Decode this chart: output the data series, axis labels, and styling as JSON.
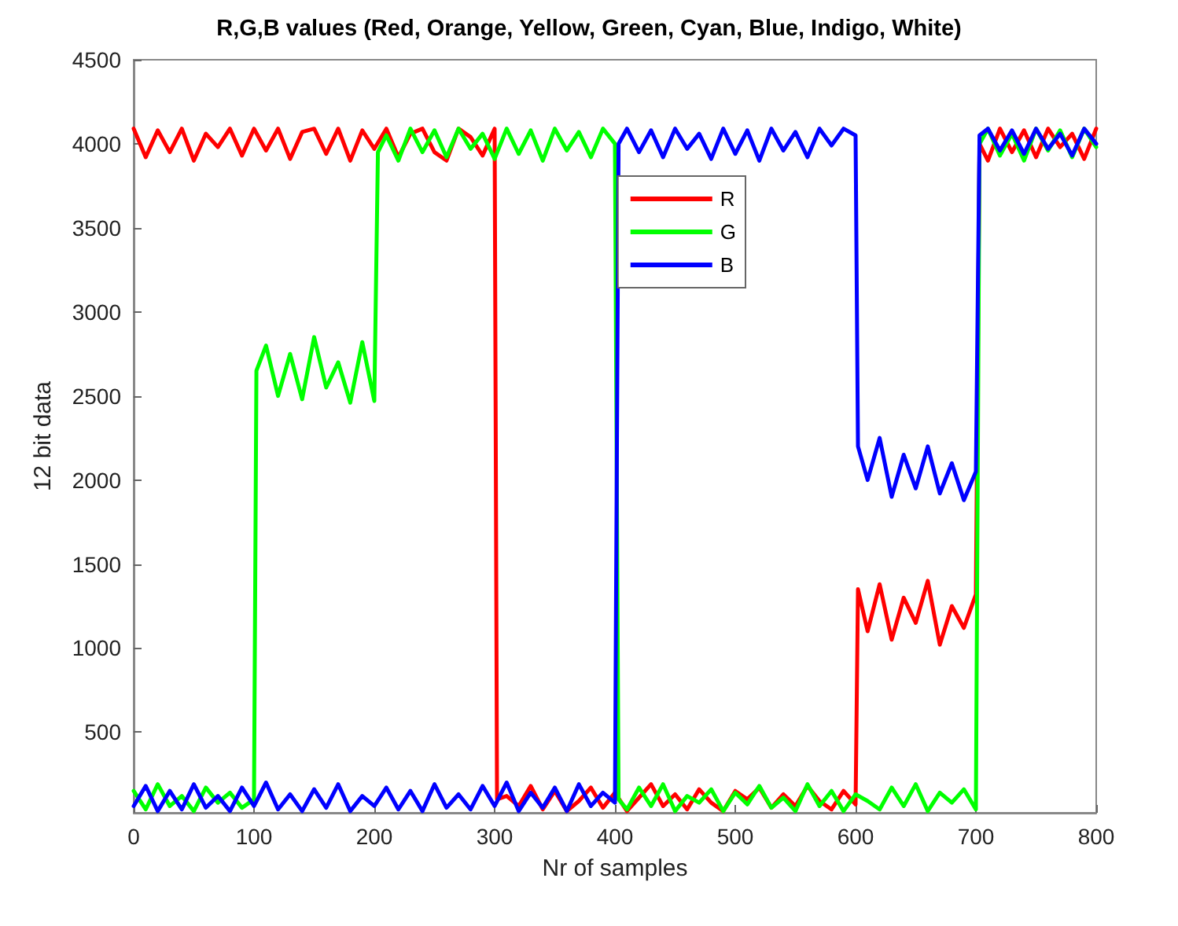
{
  "chart_data": {
    "type": "line",
    "title": "R,G,B values (Red, Orange, Yellow, Green, Cyan, Blue, Indigo, White)",
    "xlabel": "Nr of samples",
    "ylabel": "12 bit data",
    "xlim": [
      0,
      800
    ],
    "xticks": [
      0,
      100,
      200,
      300,
      400,
      500,
      600,
      700,
      800
    ],
    "ylim": [
      20,
      4500
    ],
    "yticks": [
      500,
      1000,
      1500,
      2000,
      2500,
      3000,
      3500,
      4000,
      4500
    ],
    "grid": false,
    "legend": "top right",
    "marker": "none",
    "line_style": "solid",
    "series": [
      {
        "name": "R",
        "color": "#ff0000",
        "x": [
          0,
          10,
          20,
          30,
          40,
          50,
          60,
          70,
          80,
          90,
          100,
          110,
          120,
          130,
          140,
          150,
          160,
          170,
          180,
          190,
          200,
          210,
          220,
          230,
          240,
          250,
          260,
          270,
          280,
          290,
          300,
          302,
          310,
          320,
          330,
          340,
          350,
          360,
          370,
          380,
          390,
          400,
          410,
          420,
          430,
          440,
          450,
          460,
          470,
          480,
          490,
          500,
          510,
          520,
          530,
          540,
          550,
          560,
          570,
          580,
          590,
          600,
          602,
          610,
          620,
          630,
          640,
          650,
          660,
          670,
          680,
          690,
          700,
          703,
          710,
          720,
          730,
          740,
          750,
          760,
          770,
          780,
          790,
          800
        ],
        "values": [
          4090,
          3920,
          4080,
          3950,
          4090,
          3900,
          4060,
          3980,
          4090,
          3930,
          4090,
          3960,
          4090,
          3910,
          4070,
          4090,
          3940,
          4090,
          3900,
          4080,
          3970,
          4090,
          3920,
          4060,
          4090,
          3950,
          3900,
          4090,
          4040,
          3930,
          4090,
          100,
          120,
          60,
          180,
          40,
          150,
          30,
          90,
          170,
          50,
          140,
          30,
          110,
          190,
          60,
          130,
          40,
          160,
          80,
          30,
          150,
          100,
          170,
          50,
          130,
          60,
          180,
          90,
          40,
          150,
          70,
          1350,
          1100,
          1380,
          1050,
          1300,
          1150,
          1400,
          1020,
          1250,
          1120,
          1320,
          4000,
          3900,
          4090,
          3950,
          4080,
          3920,
          4090,
          3980,
          4060,
          3910,
          4090
        ]
      },
      {
        "name": "G",
        "color": "#00ff00",
        "x": [
          0,
          10,
          20,
          30,
          40,
          50,
          60,
          70,
          80,
          90,
          100,
          102,
          110,
          120,
          130,
          140,
          150,
          160,
          170,
          180,
          190,
          200,
          203,
          210,
          220,
          230,
          240,
          250,
          260,
          270,
          280,
          290,
          300,
          310,
          320,
          330,
          340,
          350,
          360,
          370,
          380,
          390,
          400,
          403,
          410,
          420,
          430,
          440,
          450,
          460,
          470,
          480,
          490,
          500,
          510,
          520,
          530,
          540,
          550,
          560,
          570,
          580,
          590,
          600,
          610,
          620,
          630,
          640,
          650,
          660,
          670,
          680,
          690,
          700,
          703,
          710,
          720,
          730,
          740,
          750,
          760,
          770,
          780,
          790,
          800
        ],
        "values": [
          150,
          40,
          190,
          60,
          120,
          30,
          170,
          80,
          140,
          50,
          100,
          2650,
          2800,
          2500,
          2750,
          2480,
          2850,
          2550,
          2700,
          2460,
          2820,
          2470,
          3950,
          4050,
          3900,
          4090,
          3950,
          4080,
          3920,
          4090,
          3970,
          4060,
          3910,
          4090,
          3940,
          4080,
          3900,
          4090,
          3960,
          4070,
          3920,
          4090,
          4000,
          100,
          40,
          170,
          60,
          190,
          30,
          120,
          80,
          160,
          30,
          140,
          70,
          180,
          50,
          110,
          30,
          190,
          60,
          150,
          30,
          130,
          90,
          40,
          170,
          60,
          190,
          30,
          140,
          80,
          160,
          40,
          4000,
          4090,
          3930,
          4060,
          3900,
          4090,
          3960,
          4080,
          3920,
          4090,
          3980
        ]
      },
      {
        "name": "B",
        "color": "#0000ff",
        "x": [
          0,
          10,
          20,
          30,
          40,
          50,
          60,
          70,
          80,
          90,
          100,
          110,
          120,
          130,
          140,
          150,
          160,
          170,
          180,
          190,
          200,
          210,
          220,
          230,
          240,
          250,
          260,
          270,
          280,
          290,
          300,
          310,
          320,
          330,
          340,
          350,
          360,
          370,
          380,
          390,
          400,
          403,
          410,
          420,
          430,
          440,
          450,
          460,
          470,
          480,
          490,
          500,
          510,
          520,
          530,
          540,
          550,
          560,
          570,
          580,
          590,
          600,
          602,
          610,
          620,
          630,
          640,
          650,
          660,
          670,
          680,
          690,
          700,
          703,
          710,
          720,
          730,
          740,
          750,
          760,
          770,
          780,
          790,
          800
        ],
        "values": [
          60,
          180,
          30,
          150,
          40,
          190,
          50,
          120,
          30,
          170,
          60,
          200,
          40,
          130,
          30,
          160,
          50,
          190,
          30,
          120,
          60,
          170,
          40,
          150,
          30,
          190,
          50,
          130,
          40,
          180,
          60,
          200,
          30,
          140,
          50,
          170,
          30,
          190,
          60,
          140,
          80,
          4000,
          4090,
          3950,
          4080,
          3920,
          4090,
          3970,
          4060,
          3910,
          4090,
          3940,
          4080,
          3900,
          4090,
          3960,
          4070,
          3920,
          4090,
          3990,
          4090,
          4050,
          2200,
          2000,
          2250,
          1900,
          2150,
          1950,
          2200,
          1920,
          2100,
          1880,
          2050,
          4050,
          4090,
          3960,
          4080,
          3940,
          4090,
          3970,
          4060,
          3930,
          4090,
          4000
        ]
      }
    ]
  }
}
